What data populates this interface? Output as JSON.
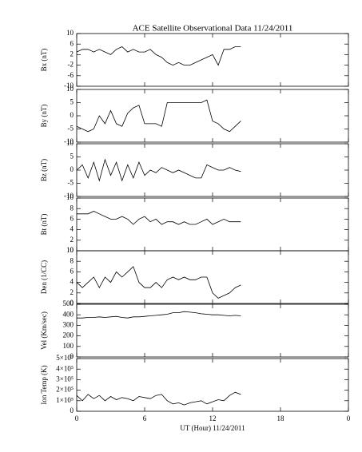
{
  "chart_data": [
    {
      "type": "line",
      "title": "ACE Satellite Observational Data   11/24/2011",
      "ylabel": "Bx (nT)",
      "x": [
        0,
        0.5,
        1,
        1.5,
        2,
        2.5,
        3,
        3.5,
        4,
        4.5,
        5,
        5.5,
        6,
        6.5,
        7,
        7.5,
        8,
        8.5,
        9,
        9.5,
        10,
        10.5,
        11,
        11.5,
        12,
        12.5,
        13,
        13.5,
        14,
        14.5
      ],
      "series": [
        {
          "color": "#000000",
          "values": [
            3,
            4,
            4,
            3,
            4,
            3,
            2,
            4,
            5,
            3,
            4,
            3,
            3,
            4,
            2,
            1,
            -1,
            -2,
            -1,
            -2,
            -2,
            -1,
            0,
            1,
            2,
            -2,
            4,
            4,
            5,
            5
          ]
        }
      ],
      "xlim": [
        0,
        24
      ],
      "xticks": [
        0,
        6,
        12,
        18,
        24
      ],
      "ylim": [
        -10,
        10
      ],
      "yticks": [
        -10,
        -6,
        -2,
        2,
        6,
        10
      ]
    },
    {
      "type": "line",
      "ylabel": "By (nT)",
      "x": [
        0,
        0.5,
        1,
        1.5,
        2,
        2.5,
        3,
        3.5,
        4,
        4.5,
        5,
        5.5,
        6,
        6.5,
        7,
        7.5,
        8,
        8.5,
        9,
        9.5,
        10,
        10.5,
        11,
        11.5,
        12,
        12.5,
        13,
        13.5,
        14,
        14.5
      ],
      "series": [
        {
          "color": "#000000",
          "values": [
            -4,
            -5,
            -6,
            -5,
            0,
            -3,
            2,
            -3,
            -4,
            1,
            3,
            4,
            -3,
            -3,
            -3,
            -4,
            5,
            5,
            5,
            5,
            5,
            5,
            5,
            6,
            -2,
            -3,
            -5,
            -6,
            -4,
            -2
          ]
        }
      ],
      "xlim": [
        0,
        24
      ],
      "xticks": [
        0,
        6,
        12,
        18,
        24
      ],
      "ylim": [
        -10,
        10
      ],
      "yticks": [
        -10,
        -5,
        0,
        5,
        10
      ]
    },
    {
      "type": "line",
      "ylabel": "Bz (nT)",
      "x": [
        0,
        0.5,
        1,
        1.5,
        2,
        2.5,
        3,
        3.5,
        4,
        4.5,
        5,
        5.5,
        6,
        6.5,
        7,
        7.5,
        8,
        8.5,
        9,
        9.5,
        10,
        10.5,
        11,
        11.5,
        12,
        12.5,
        13,
        13.5,
        14,
        14.5
      ],
      "series": [
        {
          "color": "#000000",
          "values": [
            0,
            2,
            -3,
            3,
            -4,
            4,
            -2,
            3,
            -4,
            2,
            -3,
            3,
            -2,
            0,
            -1,
            1,
            0,
            -1,
            0,
            -1,
            -2,
            -3,
            -3,
            2,
            1,
            0,
            0,
            1,
            0,
            -0.5
          ]
        }
      ],
      "xlim": [
        0,
        24
      ],
      "xticks": [
        0,
        6,
        12,
        18,
        24
      ],
      "ylim": [
        -10,
        10
      ],
      "yticks": [
        -10,
        -5,
        0,
        5,
        10
      ]
    },
    {
      "type": "line",
      "ylabel": "Bt (nT)",
      "x": [
        0,
        0.5,
        1,
        1.5,
        2,
        2.5,
        3,
        3.5,
        4,
        4.5,
        5,
        5.5,
        6,
        6.5,
        7,
        7.5,
        8,
        8.5,
        9,
        9.5,
        10,
        10.5,
        11,
        11.5,
        12,
        12.5,
        13,
        13.5,
        14,
        14.5
      ],
      "series": [
        {
          "color": "#000000",
          "values": [
            7,
            7,
            7,
            7.5,
            7,
            6.5,
            6,
            6,
            6.5,
            6,
            5,
            6,
            6.5,
            5.5,
            6,
            5,
            5.5,
            5.5,
            5,
            5.5,
            5,
            5,
            5.5,
            6,
            5,
            5.5,
            6,
            5.5,
            5.5,
            5.5
          ]
        }
      ],
      "xlim": [
        0,
        24
      ],
      "xticks": [
        0,
        6,
        12,
        18,
        24
      ],
      "ylim": [
        0,
        10
      ],
      "yticks": [
        0,
        2,
        4,
        6,
        8,
        10
      ]
    },
    {
      "type": "line",
      "ylabel": "Den (1/CC)",
      "x": [
        0,
        0.5,
        1,
        1.5,
        2,
        2.5,
        3,
        3.5,
        4,
        4.5,
        5,
        5.5,
        6,
        6.5,
        7,
        7.5,
        8,
        8.5,
        9,
        9.5,
        10,
        10.5,
        11,
        11.5,
        12,
        12.5,
        13,
        13.5,
        14,
        14.5
      ],
      "series": [
        {
          "color": "#000000",
          "values": [
            4,
            3,
            4,
            5,
            3,
            5,
            4,
            6,
            5,
            6,
            7,
            4,
            3,
            3,
            4,
            3,
            4.5,
            5,
            4.5,
            5,
            4.5,
            4.5,
            5,
            5,
            2,
            1,
            1.5,
            2,
            3,
            3.5
          ]
        }
      ],
      "xlim": [
        0,
        24
      ],
      "xticks": [
        0,
        6,
        12,
        18,
        24
      ],
      "ylim": [
        0,
        10
      ],
      "yticks": [
        0,
        2,
        4,
        6,
        8,
        10
      ]
    },
    {
      "type": "line",
      "ylabel": "Vel (Km/sec)",
      "x": [
        0,
        0.5,
        1,
        1.5,
        2,
        2.5,
        3,
        3.5,
        4,
        4.5,
        5,
        5.5,
        6,
        6.5,
        7,
        7.5,
        8,
        8.5,
        9,
        9.5,
        10,
        10.5,
        11,
        11.5,
        12,
        12.5,
        13,
        13.5,
        14,
        14.5
      ],
      "series": [
        {
          "color": "#000000",
          "values": [
            370,
            370,
            375,
            375,
            380,
            375,
            380,
            385,
            375,
            370,
            380,
            380,
            385,
            390,
            395,
            400,
            405,
            420,
            420,
            430,
            425,
            420,
            410,
            405,
            400,
            400,
            395,
            390,
            395,
            390
          ]
        }
      ],
      "xlim": [
        0,
        24
      ],
      "xticks": [
        0,
        6,
        12,
        18,
        24
      ],
      "ylim": [
        0,
        500
      ],
      "yticks": [
        0,
        100,
        200,
        300,
        400,
        500
      ]
    },
    {
      "type": "line",
      "ylabel": "Ion Temp (K)",
      "xlabel": "UT (Hour)   11/24/2011",
      "x": [
        0,
        0.5,
        1,
        1.5,
        2,
        2.5,
        3,
        3.5,
        4,
        4.5,
        5,
        5.5,
        6,
        6.5,
        7,
        7.5,
        8,
        8.5,
        9,
        9.5,
        10,
        10.5,
        11,
        11.5,
        12,
        12.5,
        13,
        13.5,
        14,
        14.5
      ],
      "series": [
        {
          "color": "#000000",
          "values": [
            150000,
            100000,
            160000,
            120000,
            150000,
            100000,
            140000,
            110000,
            130000,
            120000,
            100000,
            140000,
            130000,
            120000,
            150000,
            160000,
            100000,
            70000,
            80000,
            60000,
            80000,
            90000,
            100000,
            70000,
            90000,
            110000,
            100000,
            150000,
            180000,
            160000
          ]
        }
      ],
      "xlim": [
        0,
        24
      ],
      "xticks": [
        0,
        6,
        12,
        18,
        {
          "value": 24,
          "label": "0"
        }
      ],
      "ylim": [
        0,
        500000
      ],
      "yticks": [
        0,
        {
          "value": 100000,
          "label": "1×10⁵"
        },
        {
          "value": 200000,
          "label": "2×10⁵"
        },
        {
          "value": 300000,
          "label": "3×10⁵"
        },
        {
          "value": 400000,
          "label": "4×10⁵"
        },
        {
          "value": 500000,
          "label": "5×10⁵"
        }
      ]
    }
  ]
}
